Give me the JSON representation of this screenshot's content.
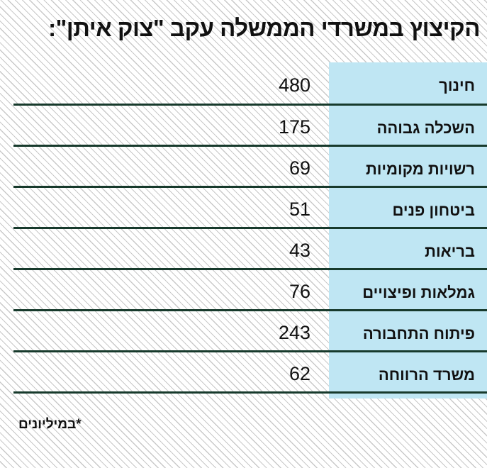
{
  "title": "הקיצוץ במשרדי הממשלה עקב \"צוק איתן\":",
  "footnote": "*במיליונים",
  "chart_data": {
    "type": "table",
    "title": "הקיצוץ במשרדי הממשלה עקב \"צוק איתן\":",
    "unit_note": "*במיליונים",
    "categories": [
      "חינוך",
      "השכלה גבוהה",
      "רשויות מקומיות",
      "ביטחון פנים",
      "בריאות",
      "גמלאות ופיצויים",
      "פיתוח התחבורה",
      "משרד הרווחה"
    ],
    "values": [
      480,
      175,
      69,
      51,
      43,
      76,
      243,
      62
    ],
    "rows": [
      {
        "label": "חינוך",
        "value": "480"
      },
      {
        "label": "השכלה גבוהה",
        "value": "175"
      },
      {
        "label": "רשויות מקומיות",
        "value": "69"
      },
      {
        "label": "ביטחון פנים",
        "value": "51"
      },
      {
        "label": "בריאות",
        "value": "43"
      },
      {
        "label": "גמלאות ופיצויים",
        "value": "76"
      },
      {
        "label": "פיתוח התחבורה",
        "value": "243"
      },
      {
        "label": "משרד הרווחה",
        "value": "62"
      }
    ],
    "colors": {
      "label_column": "#bfe6f3",
      "row_divider": "#173a2c",
      "text": "#111111"
    }
  }
}
